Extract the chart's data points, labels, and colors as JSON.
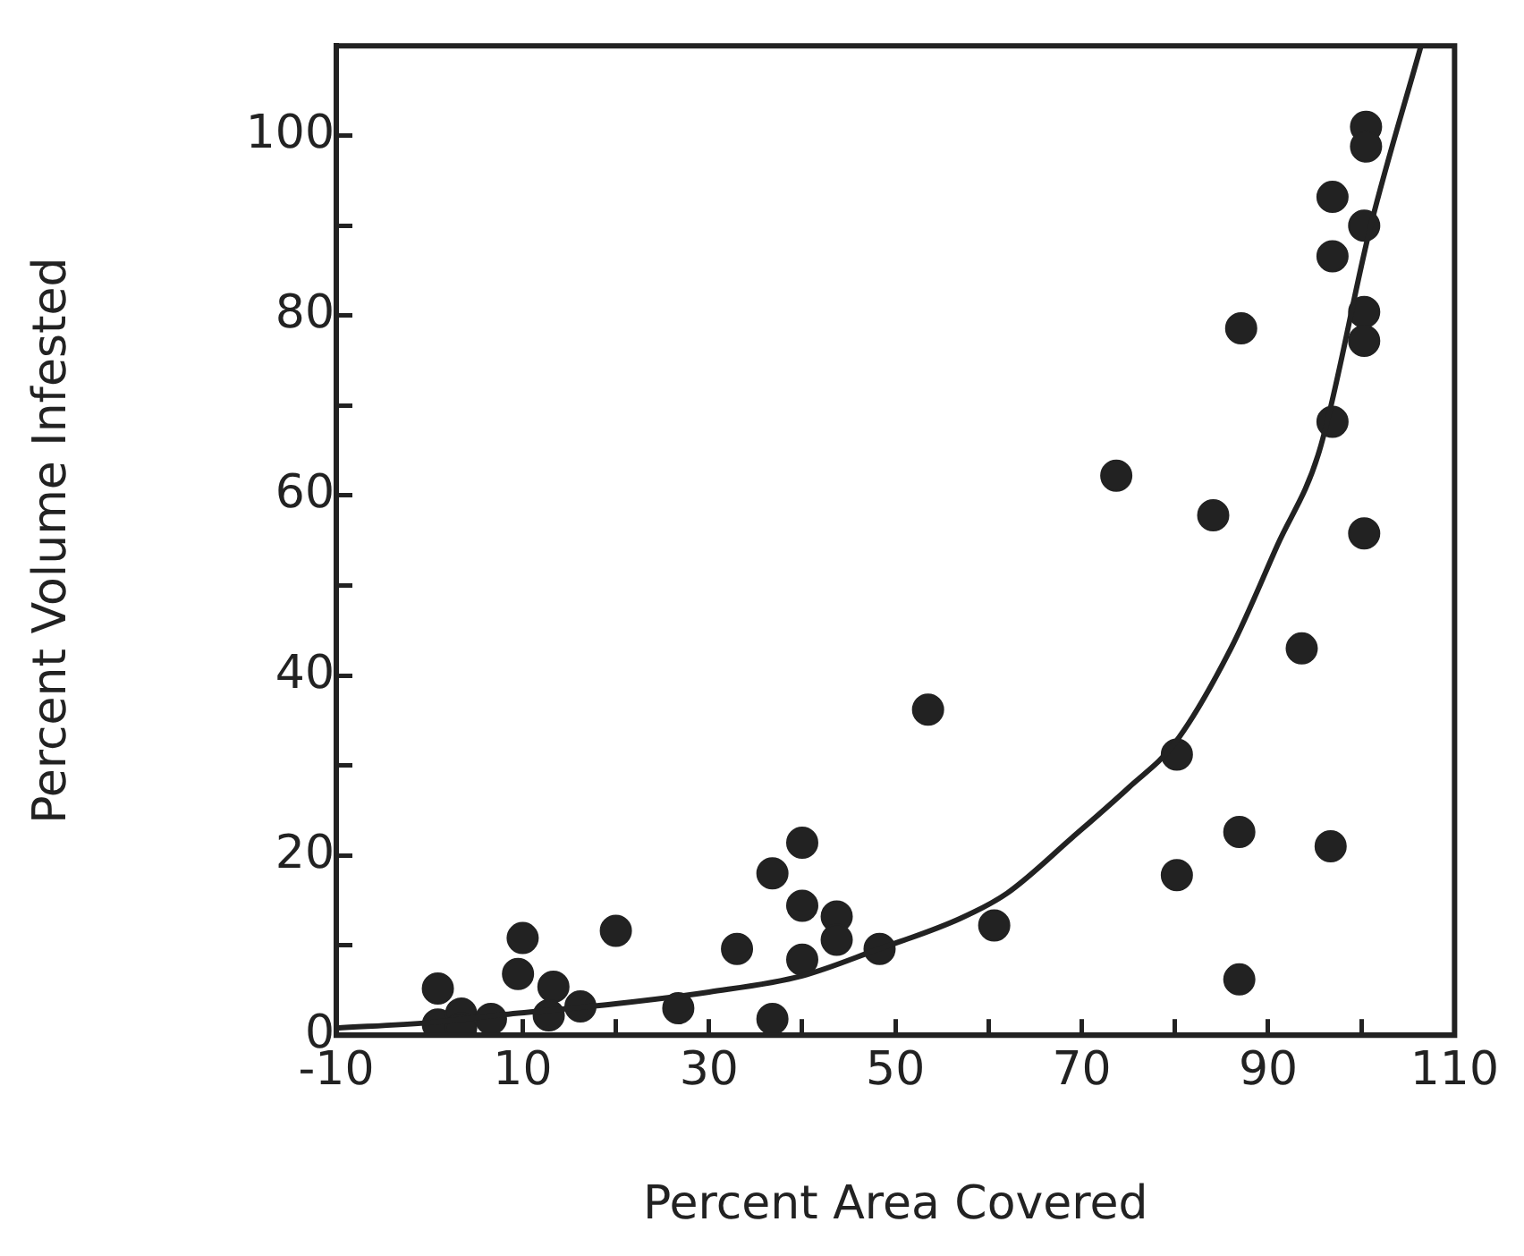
{
  "chart_data": {
    "type": "scatter",
    "xlabel": "Percent Area Covered",
    "ylabel": "Percent Volume Infested",
    "xlim": [
      -10,
      110
    ],
    "ylim": [
      0,
      110
    ],
    "xticks": [
      -10,
      {
        "value": 0,
        "label": null
      },
      10,
      {
        "value": 20,
        "label": null
      },
      30,
      {
        "value": 40,
        "label": null
      },
      50,
      {
        "value": 60,
        "label": null
      },
      70,
      {
        "value": 80,
        "label": null
      },
      90,
      {
        "value": 100,
        "label": null
      },
      110
    ],
    "yticks": [
      0,
      {
        "value": 10,
        "label": null
      },
      20,
      {
        "value": 30,
        "label": null
      },
      40,
      {
        "value": 50,
        "label": null
      },
      60,
      {
        "value": 70,
        "label": null
      },
      80,
      {
        "value": 90,
        "label": null
      },
      100
    ],
    "grid": false,
    "legend": false,
    "series": [
      {
        "marker": "circle",
        "color": "#222222",
        "x": [
          0.9,
          0.9,
          3.4,
          3.4,
          6.6,
          10,
          9.5,
          13.3,
          12.8,
          16.2,
          20,
          26.7,
          33,
          36.8,
          40,
          40,
          40,
          43.7,
          43.7,
          48.3,
          36.8,
          53.5,
          60.6,
          100.5,
          100.5,
          96.9,
          100.3,
          96.9,
          100.3,
          100.3,
          87.1,
          96.9,
          73.7,
          84.1,
          100.3,
          93.6,
          80.2,
          86.9,
          96.7,
          80.2,
          86.9
        ],
        "values": [
          5.2,
          1.2,
          2.4,
          0.8,
          1.8,
          10.8,
          6.8,
          5.4,
          2.2,
          3.2,
          11.6,
          3,
          9.6,
          18,
          21.4,
          14.4,
          8.4,
          13.2,
          10.6,
          9.6,
          1.8,
          36.2,
          12.2,
          101,
          98.8,
          93.2,
          90,
          86.6,
          80.4,
          77.2,
          78.6,
          68.2,
          62.2,
          57.8,
          55.8,
          43,
          31.2,
          22.6,
          21,
          17.8,
          6.2
        ]
      },
      {
        "type": "line",
        "marker": "none",
        "line_style": "solid",
        "color": "#222222",
        "x": [
          -10,
          0,
          8,
          20,
          30,
          40,
          48,
          57,
          62,
          69,
          75,
          80,
          86,
          91,
          95.5,
          101,
          106.4
        ],
        "values": [
          0.8,
          1.4,
          2.3,
          3.5,
          4.8,
          6.6,
          9.5,
          13,
          15.8,
          22,
          27.5,
          32.5,
          43,
          54.5,
          65,
          90,
          110
        ]
      }
    ]
  }
}
